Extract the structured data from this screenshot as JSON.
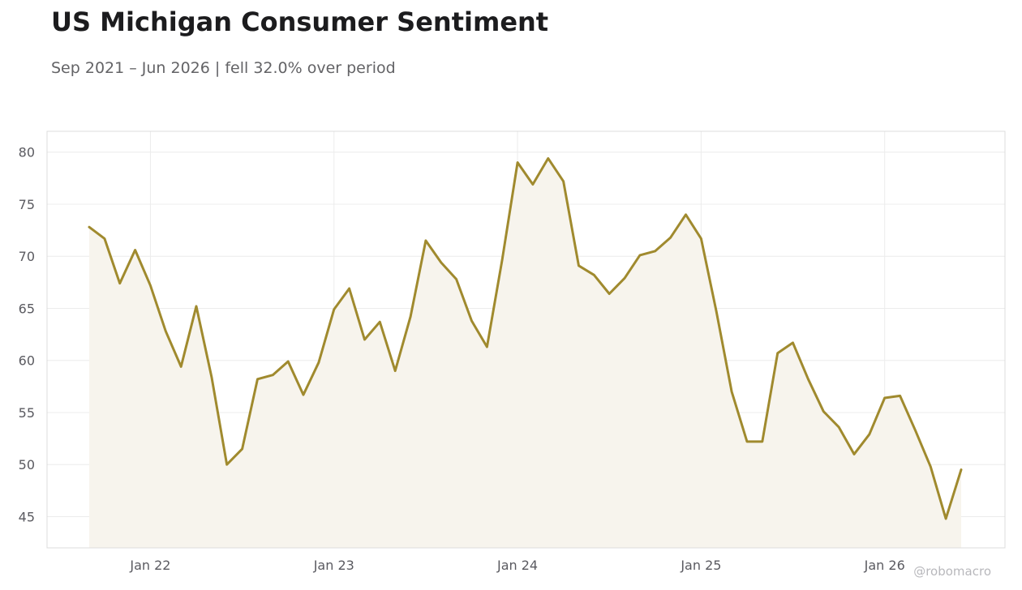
{
  "header": {
    "title": "US Michigan Consumer Sentiment",
    "subtitle": "Sep 2021 – Jun 2026 | fell 32.0% over period"
  },
  "watermark": "@robomacro",
  "colors": {
    "line": "#a08a2e",
    "fill": "#f7f4ed",
    "grid": "#ececec",
    "frame": "#dcdcdc"
  },
  "chart_data": {
    "type": "area",
    "title": "US Michigan Consumer Sentiment",
    "xlabel": "",
    "ylabel": "",
    "ylim": [
      42,
      82
    ],
    "yticks": [
      45,
      50,
      55,
      60,
      65,
      70,
      75,
      80
    ],
    "xticks": [
      {
        "date": "2022-01",
        "label": "Jan 22"
      },
      {
        "date": "2023-01",
        "label": "Jan 23"
      },
      {
        "date": "2024-01",
        "label": "Jan 24"
      },
      {
        "date": "2025-01",
        "label": "Jan 25"
      },
      {
        "date": "2026-01",
        "label": "Jan 26"
      }
    ],
    "grid": true,
    "legend": "none",
    "series": [
      {
        "x": [
          "2021-09",
          "2021-10",
          "2021-11",
          "2021-12",
          "2022-01",
          "2022-02",
          "2022-03",
          "2022-04",
          "2022-05",
          "2022-06",
          "2022-07",
          "2022-08",
          "2022-09",
          "2022-10",
          "2022-11",
          "2022-12",
          "2023-01",
          "2023-02",
          "2023-03",
          "2023-04",
          "2023-05",
          "2023-06",
          "2023-07",
          "2023-08",
          "2023-09",
          "2023-10",
          "2023-11",
          "2023-12",
          "2024-01",
          "2024-02",
          "2024-03",
          "2024-04",
          "2024-05",
          "2024-06",
          "2024-07",
          "2024-08",
          "2024-09",
          "2024-10",
          "2024-11",
          "2024-12",
          "2025-01",
          "2025-02",
          "2025-03",
          "2025-04",
          "2025-05",
          "2025-06",
          "2025-07",
          "2025-08",
          "2025-09",
          "2025-10",
          "2025-11",
          "2025-12",
          "2026-01",
          "2026-02",
          "2026-03",
          "2026-04",
          "2026-05",
          "2026-06"
        ],
        "values": [
          72.8,
          71.7,
          67.4,
          70.6,
          67.2,
          62.8,
          59.4,
          65.2,
          58.4,
          50.0,
          51.5,
          58.2,
          58.6,
          59.9,
          56.7,
          59.8,
          64.9,
          66.9,
          62.0,
          63.7,
          59.0,
          64.2,
          71.5,
          69.4,
          67.8,
          63.8,
          61.3,
          69.7,
          79.0,
          76.9,
          79.4,
          77.2,
          69.1,
          68.2,
          66.4,
          67.9,
          70.1,
          70.5,
          71.8,
          74.0,
          71.7,
          64.7,
          57.0,
          52.2,
          52.2,
          60.7,
          61.7,
          58.2,
          55.1,
          53.6,
          51.0,
          52.9,
          56.4,
          56.6,
          53.3,
          49.8,
          44.8,
          49.5
        ]
      }
    ]
  }
}
